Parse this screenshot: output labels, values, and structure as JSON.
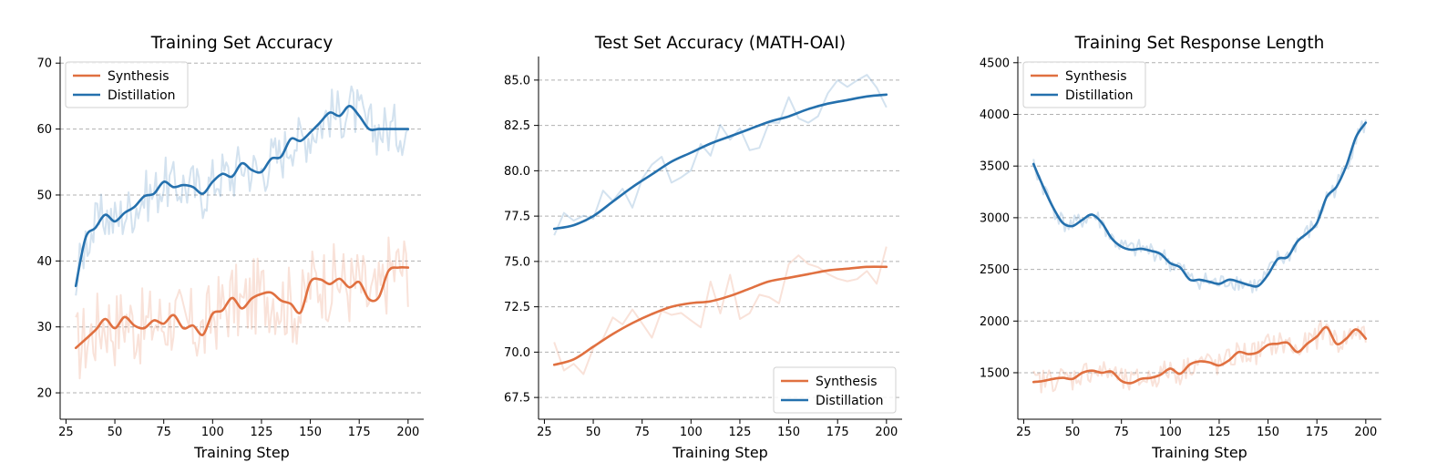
{
  "colors": {
    "synthesis": "#e07040",
    "distillation": "#2470ad",
    "grid": "#b0b0b0",
    "axis": "#000000"
  },
  "chart_data": [
    {
      "type": "line",
      "title": "Training Set Accuracy",
      "xlabel": "Training Step",
      "ylabel": "",
      "xlim": [
        22,
        208
      ],
      "ylim": [
        16,
        71
      ],
      "xticks": [
        25,
        50,
        75,
        100,
        125,
        150,
        175,
        200
      ],
      "yticks": [
        20,
        30,
        40,
        50,
        60,
        70
      ],
      "grid": "y-dashed",
      "legend": "top-left",
      "series": [
        {
          "name": "Synthesis",
          "x": [
            30,
            40,
            45,
            50,
            55,
            60,
            65,
            70,
            75,
            80,
            85,
            90,
            95,
            100,
            105,
            110,
            115,
            120,
            125,
            130,
            135,
            140,
            145,
            150,
            155,
            160,
            165,
            170,
            175,
            180,
            185,
            190,
            195,
            200
          ],
          "y": [
            26.8,
            29.5,
            31.2,
            29.8,
            31.5,
            30.2,
            29.8,
            31.0,
            30.5,
            31.8,
            29.8,
            30.2,
            28.8,
            32.0,
            32.5,
            34.4,
            32.8,
            34.3,
            35.0,
            35.2,
            34.0,
            33.5,
            32.2,
            36.8,
            37.2,
            36.5,
            37.3,
            36.0,
            36.8,
            34.2,
            34.5,
            38.5,
            39.0,
            39.0
          ]
        },
        {
          "name": "Distillation",
          "x": [
            30,
            35,
            40,
            45,
            50,
            55,
            60,
            65,
            70,
            75,
            80,
            85,
            90,
            95,
            100,
            105,
            110,
            115,
            120,
            125,
            130,
            135,
            140,
            145,
            150,
            155,
            160,
            165,
            170,
            175,
            180,
            185,
            190,
            195,
            200
          ],
          "y": [
            36.2,
            43.5,
            45.0,
            47.0,
            46.0,
            47.3,
            48.2,
            49.8,
            50.2,
            52.0,
            51.2,
            51.5,
            51.2,
            50.2,
            52.0,
            53.2,
            52.8,
            54.8,
            53.8,
            53.5,
            55.5,
            55.8,
            58.5,
            58.2,
            59.5,
            61.0,
            62.5,
            62.0,
            63.5,
            62.0,
            60.0,
            60.0,
            60.0,
            60.0,
            60.0
          ]
        }
      ]
    },
    {
      "type": "line",
      "title": "Test Set Accuracy (MATH-OAI)",
      "xlabel": "Training Step",
      "ylabel": "",
      "xlim": [
        22,
        208
      ],
      "ylim": [
        66.3,
        86.3
      ],
      "xticks": [
        25,
        50,
        75,
        100,
        125,
        150,
        175,
        200
      ],
      "yticks": [
        67.5,
        70.0,
        72.5,
        75.0,
        77.5,
        80.0,
        82.5,
        85.0
      ],
      "grid": "y-dashed",
      "legend": "bottom-right",
      "series": [
        {
          "name": "Synthesis",
          "x": [
            30,
            40,
            50,
            60,
            70,
            80,
            90,
            100,
            110,
            120,
            130,
            140,
            150,
            160,
            170,
            180,
            190,
            200
          ],
          "y": [
            69.3,
            69.6,
            70.3,
            71.0,
            71.6,
            72.1,
            72.5,
            72.7,
            72.8,
            73.1,
            73.5,
            73.9,
            74.1,
            74.3,
            74.5,
            74.6,
            74.7,
            74.7
          ]
        },
        {
          "name": "Distillation",
          "x": [
            30,
            40,
            50,
            60,
            70,
            80,
            90,
            100,
            110,
            120,
            130,
            140,
            150,
            160,
            170,
            180,
            190,
            200
          ],
          "y": [
            76.8,
            77.0,
            77.5,
            78.3,
            79.1,
            79.8,
            80.5,
            81.0,
            81.5,
            81.9,
            82.3,
            82.7,
            83.0,
            83.4,
            83.7,
            83.9,
            84.1,
            84.2
          ]
        }
      ]
    },
    {
      "type": "line",
      "title": "Training Set Response Length",
      "xlabel": "Training Step",
      "ylabel": "",
      "xlim": [
        22,
        208
      ],
      "ylim": [
        1050,
        4560
      ],
      "xticks": [
        25,
        50,
        75,
        100,
        125,
        150,
        175,
        200
      ],
      "yticks": [
        1500,
        2000,
        2500,
        3000,
        3500,
        4000,
        4500
      ],
      "grid": "y-dashed",
      "legend": "top-left",
      "series": [
        {
          "name": "Synthesis",
          "x": [
            30,
            35,
            40,
            45,
            50,
            55,
            60,
            65,
            70,
            75,
            80,
            85,
            90,
            95,
            100,
            105,
            110,
            115,
            120,
            125,
            130,
            135,
            140,
            145,
            150,
            155,
            160,
            165,
            170,
            175,
            180,
            185,
            190,
            195,
            200
          ],
          "y": [
            1410,
            1420,
            1440,
            1450,
            1440,
            1500,
            1520,
            1500,
            1510,
            1420,
            1400,
            1440,
            1450,
            1480,
            1540,
            1490,
            1580,
            1610,
            1600,
            1570,
            1620,
            1700,
            1680,
            1700,
            1770,
            1780,
            1790,
            1700,
            1780,
            1850,
            1940,
            1780,
            1830,
            1920,
            1830
          ]
        },
        {
          "name": "Distillation",
          "x": [
            30,
            35,
            40,
            45,
            50,
            55,
            60,
            65,
            70,
            75,
            80,
            85,
            90,
            95,
            100,
            105,
            110,
            115,
            120,
            125,
            130,
            135,
            140,
            145,
            150,
            155,
            160,
            165,
            170,
            175,
            180,
            185,
            190,
            195,
            200
          ],
          "y": [
            3520,
            3300,
            3100,
            2950,
            2920,
            2980,
            3030,
            2950,
            2800,
            2720,
            2690,
            2700,
            2680,
            2650,
            2560,
            2520,
            2400,
            2400,
            2380,
            2360,
            2400,
            2380,
            2350,
            2340,
            2450,
            2600,
            2620,
            2770,
            2850,
            2950,
            3200,
            3300,
            3500,
            3780,
            3920
          ]
        }
      ]
    }
  ]
}
